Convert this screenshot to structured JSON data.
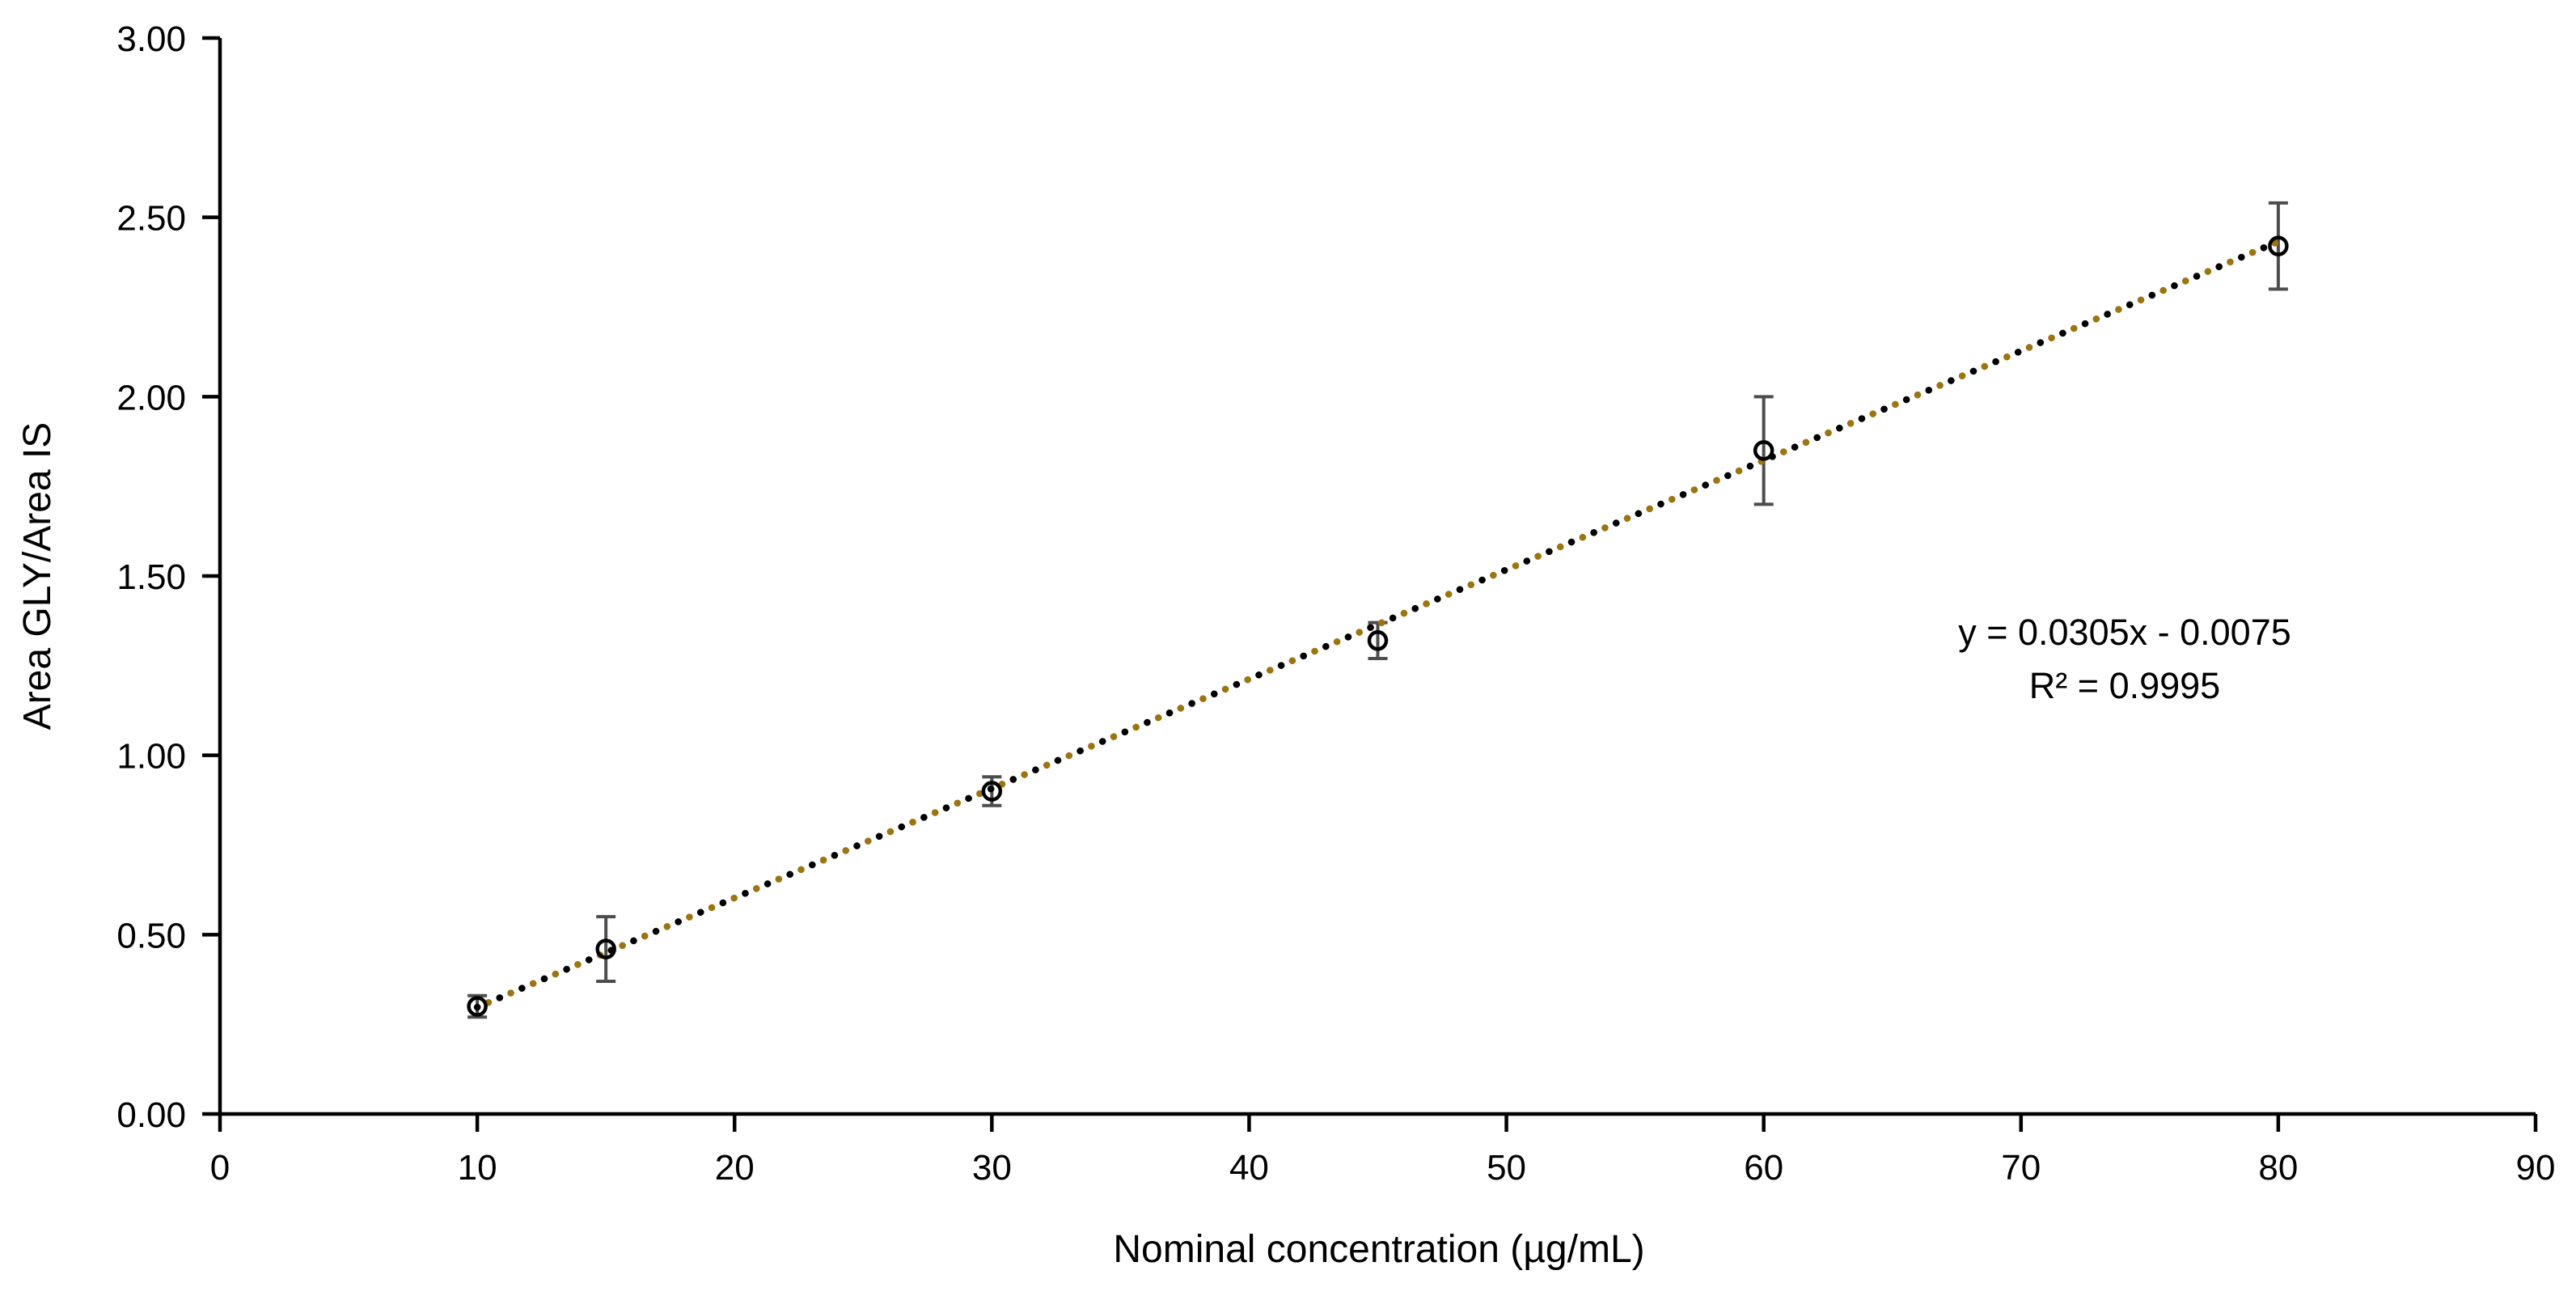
{
  "chart_data": {
    "type": "scatter",
    "title": "",
    "legend": "none",
    "grid": "off",
    "x_axis": {
      "label": "Nominal concentration (µg/mL)",
      "min": 0,
      "max": 90,
      "tick_step": 10,
      "tick_labels": [
        "0",
        "10",
        "20",
        "30",
        "40",
        "50",
        "60",
        "70",
        "80",
        "90"
      ]
    },
    "y_axis": {
      "label": "Area GLY/Area IS",
      "min": 0,
      "max": 3,
      "tick_step": 0.5,
      "tick_labels": [
        "0.00",
        "0.50",
        "1.00",
        "1.50",
        "2.00",
        "2.50",
        "3.00"
      ]
    },
    "series": [
      {
        "name": "calibration-points",
        "marker": "open-circle",
        "points": [
          {
            "x": 10,
            "y": 0.3,
            "error": 0.03
          },
          {
            "x": 15,
            "y": 0.46,
            "error": 0.09
          },
          {
            "x": 30,
            "y": 0.9,
            "error": 0.04
          },
          {
            "x": 45,
            "y": 1.32,
            "error": 0.05
          },
          {
            "x": 60,
            "y": 1.85,
            "error": 0.15
          },
          {
            "x": 80,
            "y": 2.42,
            "error": 0.12
          }
        ]
      }
    ],
    "trendline": {
      "style": "dotted",
      "slope": 0.0305,
      "intercept": -0.0075,
      "x_start": 10,
      "x_end": 80,
      "equation_label": "y = 0.0305x - 0.0075",
      "r_squared_label": "R² = 0.9995"
    }
  },
  "colors": {
    "background": "#ffffff",
    "axis": "#000000",
    "text": "#000000",
    "marker": "#000000",
    "error_bar": "#4d4d4d",
    "trendline_primary": "#000000",
    "trendline_secondary": "#9c7410"
  }
}
